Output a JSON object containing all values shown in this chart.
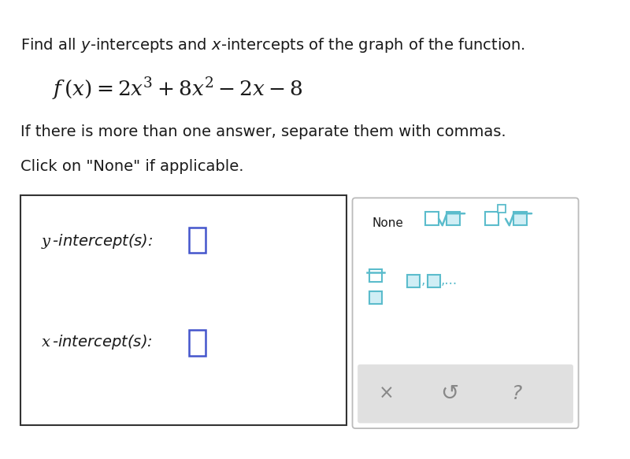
{
  "bg_color": "#ffffff",
  "text_color": "#1a1a1a",
  "line1": "Find all $y$-intercepts and $x$-intercepts of the graph of the function.",
  "line3": "If there is more than one answer, separate them with commas.",
  "line4": "Click on \"None\" if applicable.",
  "label_y": "$y$\\,-intercept(s):",
  "label_x": "$x$\\,-intercept(s):",
  "box_border_color": "#333333",
  "input_box_color": "#4455cc",
  "panel_icon_color": "#5bbccc",
  "panel_bg": "#ffffff",
  "panel_border": "#bbbbbb",
  "panel_bottom_bg": "#e0e0e0",
  "none_text": "None",
  "bottom_x_color": "#888888",
  "bottom_undo_color": "#888888",
  "bottom_q_color": "#888888",
  "fig_w": 8.0,
  "fig_h": 5.83
}
